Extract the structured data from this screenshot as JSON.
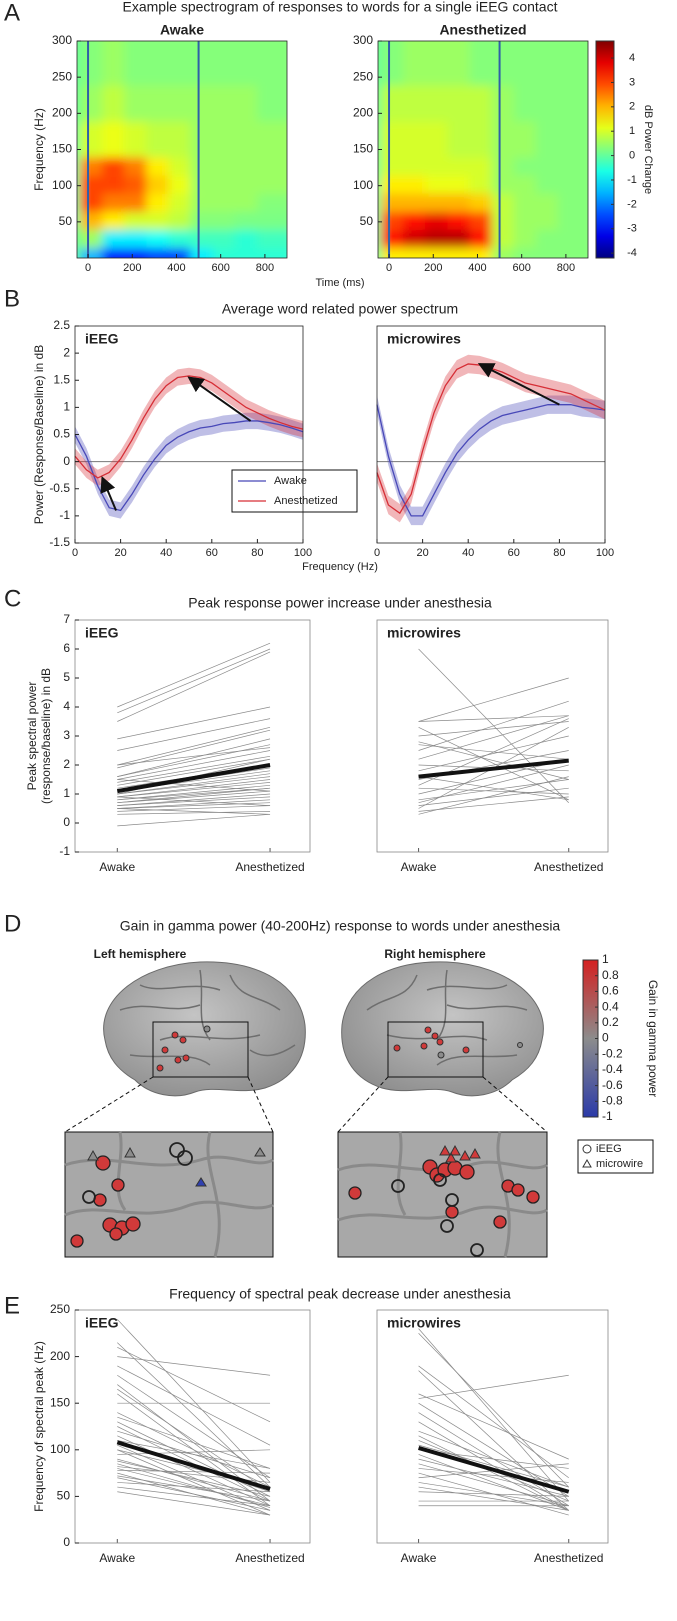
{
  "chart_data": [
    {
      "type": "heatmap",
      "panel_label": "A",
      "suptitle": "Example spectrogram of responses to words for a single iEEG contact",
      "title": "Awake",
      "ylabel": "Frequency (Hz)",
      "xlabel": "Time (ms)",
      "xlim": [
        -50,
        900
      ],
      "ylim": [
        0,
        300
      ],
      "xticks": [
        0,
        200,
        400,
        600,
        800
      ],
      "yticks": [
        50,
        100,
        150,
        200,
        250,
        300
      ],
      "x_edges": [
        -50,
        0,
        100,
        200,
        300,
        400,
        500,
        600,
        700,
        800,
        900
      ],
      "y_edges": [
        0,
        25,
        50,
        75,
        100,
        125,
        150,
        200,
        250,
        300
      ],
      "zlim": [
        -4.2,
        4.7
      ],
      "vlines": [
        0,
        500
      ],
      "vline_color": "#2f5fa8",
      "z": [
        [
          0,
          -1.5,
          -3,
          -3,
          -2.5,
          -2.5,
          -1,
          -0.5,
          -0.5,
          -0.5
        ],
        [
          0,
          0.5,
          -1,
          -1,
          -0.8,
          -0.5,
          -0.3,
          -0.3,
          -0.5,
          -0.3
        ],
        [
          0,
          2,
          1.5,
          1,
          1,
          0.8,
          0.3,
          0.3,
          0.2,
          0.2
        ],
        [
          0,
          3,
          2.5,
          2.5,
          1.5,
          1,
          0.5,
          0.5,
          0.5,
          0.3
        ],
        [
          0,
          3,
          3,
          2.8,
          1.8,
          1.2,
          0.5,
          0.5,
          0.5,
          0.5
        ],
        [
          0,
          2.5,
          3,
          2.5,
          1.5,
          1,
          0.5,
          0.5,
          0.5,
          0.5
        ],
        [
          0,
          1,
          1.2,
          1,
          0.8,
          0.8,
          0.5,
          0.5,
          0.5,
          0.5
        ],
        [
          0,
          0.5,
          0.8,
          0.5,
          0.5,
          0.5,
          0.5,
          0.5,
          0.5,
          0.3
        ],
        [
          0,
          0.3,
          0.5,
          0.3,
          0.3,
          0.3,
          0.3,
          0.3,
          0.3,
          0.3
        ]
      ]
    },
    {
      "type": "heatmap",
      "title": "Anesthetized",
      "xlim": [
        -50,
        900
      ],
      "ylim": [
        0,
        300
      ],
      "xticks": [
        0,
        200,
        400,
        600,
        800
      ],
      "yticks": [
        50,
        100,
        150,
        200,
        250,
        300
      ],
      "x_edges": [
        -50,
        0,
        100,
        200,
        300,
        400,
        500,
        600,
        700,
        800,
        900
      ],
      "y_edges": [
        0,
        25,
        50,
        75,
        100,
        125,
        150,
        200,
        250,
        300
      ],
      "zlim": [
        -4.2,
        4.7
      ],
      "vlines": [
        0,
        500
      ],
      "vline_color": "#2f5fa8",
      "clabel": "dB Power Change",
      "cticks": [
        -4,
        -3,
        -2,
        -1,
        0,
        1,
        2,
        3,
        4
      ],
      "z": [
        [
          0,
          1.5,
          1.5,
          1.5,
          1.5,
          1.5,
          0.5,
          0.3,
          0.3,
          0.3
        ],
        [
          0,
          3.5,
          4,
          4.2,
          4.2,
          3.5,
          0.8,
          0.5,
          0.3,
          0.3
        ],
        [
          0,
          3,
          3.5,
          3.8,
          3.5,
          3,
          0.8,
          0.5,
          0.5,
          0.3
        ],
        [
          0,
          2,
          2,
          2,
          2,
          1.8,
          0.8,
          0.5,
          0.5,
          0.3
        ],
        [
          0,
          1.5,
          1.5,
          1.2,
          1.2,
          1,
          0.5,
          0.5,
          0.3,
          0.3
        ],
        [
          0,
          1,
          1,
          1,
          1,
          1,
          0.5,
          0.3,
          0.3,
          0.3
        ],
        [
          0,
          1,
          1,
          1,
          0.8,
          0.8,
          0.5,
          0.5,
          0.3,
          0.3
        ],
        [
          0,
          0.8,
          0.8,
          0.8,
          0.8,
          0.8,
          0.5,
          0.3,
          0.3,
          0.3
        ],
        [
          0,
          0.3,
          0.5,
          0.5,
          0.5,
          0.3,
          0.3,
          0.3,
          0.3,
          0.3
        ]
      ]
    },
    {
      "type": "line",
      "panel_label": "B",
      "suptitle": "Average word related power spectrum",
      "title": "iEEG",
      "ylabel": "Power (Response/Baseline) in dB",
      "xlabel": "Frequency (Hz)",
      "xlim": [
        0,
        100
      ],
      "ylim": [
        -1.5,
        2.5
      ],
      "xticks": [
        0,
        20,
        40,
        60,
        80,
        100
      ],
      "yticks": [
        -1.5,
        -1,
        -0.5,
        0,
        0.5,
        1,
        1.5,
        2,
        2.5
      ],
      "hline": 0,
      "legend": true,
      "x": [
        0,
        5,
        10,
        15,
        20,
        25,
        30,
        35,
        40,
        45,
        50,
        55,
        60,
        65,
        70,
        75,
        80,
        85,
        90,
        95,
        100
      ],
      "series": [
        {
          "name": "Awake",
          "color": "#4848b8",
          "band": 0.15,
          "values": [
            0.5,
            0.1,
            -0.45,
            -0.85,
            -0.9,
            -0.6,
            -0.25,
            0.05,
            0.3,
            0.45,
            0.55,
            0.62,
            0.65,
            0.7,
            0.72,
            0.75,
            0.75,
            0.72,
            0.68,
            0.62,
            0.55
          ]
        },
        {
          "name": "Anesthetized",
          "color": "#d62e36",
          "band": 0.15,
          "values": [
            0.1,
            -0.15,
            -0.3,
            -0.2,
            0.05,
            0.4,
            0.8,
            1.15,
            1.4,
            1.55,
            1.58,
            1.55,
            1.45,
            1.3,
            1.15,
            1.0,
            0.9,
            0.8,
            0.72,
            0.65,
            0.6
          ]
        }
      ],
      "arrows": [
        [
          77,
          0.75,
          50,
          1.55
        ],
        [
          18,
          -0.9,
          12,
          -0.3
        ]
      ]
    },
    {
      "type": "line",
      "title": "microwires",
      "xlim": [
        0,
        100
      ],
      "ylim": [
        -1.5,
        2.5
      ],
      "xticks": [
        0,
        20,
        40,
        60,
        80,
        100
      ],
      "hline": 0,
      "x": [
        0,
        5,
        10,
        15,
        20,
        25,
        30,
        35,
        40,
        45,
        50,
        55,
        60,
        65,
        70,
        75,
        80,
        85,
        90,
        95,
        100
      ],
      "series": [
        {
          "color": "#4848b8",
          "band": 0.17,
          "values": [
            1.05,
            0.1,
            -0.6,
            -1.0,
            -1.0,
            -0.6,
            -0.2,
            0.15,
            0.4,
            0.6,
            0.75,
            0.85,
            0.9,
            0.95,
            1.0,
            1.05,
            1.05,
            1.05,
            1.0,
            0.98,
            0.95
          ]
        },
        {
          "color": "#d62e36",
          "band": 0.17,
          "values": [
            -0.2,
            -0.8,
            -0.95,
            -0.6,
            0.2,
            0.9,
            1.4,
            1.7,
            1.8,
            1.78,
            1.72,
            1.65,
            1.55,
            1.45,
            1.4,
            1.35,
            1.3,
            1.25,
            1.15,
            1.05,
            0.95
          ]
        }
      ],
      "arrows": [
        [
          80,
          1.05,
          45,
          1.8
        ]
      ]
    },
    {
      "type": "paired",
      "panel_label": "C",
      "suptitle": "Peak response power increase under anesthesia",
      "title": "iEEG",
      "ylabel": [
        "Peak spectral power",
        "(response/baseline) in dB"
      ],
      "categories": [
        "Awake",
        "Anesthetized"
      ],
      "ylim": [
        -1,
        7
      ],
      "yticks": [
        -1,
        0,
        1,
        2,
        3,
        4,
        5,
        6,
        7
      ],
      "subject_color": "#8a8a8a",
      "mean_color": "#111111",
      "mean": [
        1.1,
        2.0
      ],
      "subjects": [
        [
          4.0,
          6.2
        ],
        [
          3.8,
          6.0
        ],
        [
          3.5,
          5.9
        ],
        [
          2.9,
          4.0
        ],
        [
          2.5,
          3.6
        ],
        [
          2.0,
          3.3
        ],
        [
          1.9,
          3.2
        ],
        [
          1.6,
          2.9
        ],
        [
          1.6,
          2.7
        ],
        [
          1.5,
          2.5
        ],
        [
          1.4,
          2.3
        ],
        [
          1.3,
          2.2
        ],
        [
          1.2,
          2.0
        ],
        [
          1.1,
          1.9
        ],
        [
          1.1,
          1.8
        ],
        [
          1.0,
          1.7
        ],
        [
          1.0,
          1.6
        ],
        [
          0.9,
          1.5
        ],
        [
          0.9,
          1.4
        ],
        [
          0.8,
          1.3
        ],
        [
          0.8,
          1.2
        ],
        [
          0.7,
          1.2
        ],
        [
          0.7,
          1.1
        ],
        [
          0.6,
          1.0
        ],
        [
          0.6,
          0.9
        ],
        [
          0.5,
          0.8
        ],
        [
          0.5,
          0.7
        ],
        [
          0.4,
          0.6
        ],
        [
          0.3,
          0.4
        ],
        [
          -0.1,
          0.3
        ],
        [
          1.5,
          1.1
        ],
        [
          2.0,
          2.6
        ],
        [
          1.0,
          2.2
        ],
        [
          0.9,
          0.6
        ],
        [
          0.5,
          0.3
        ]
      ]
    },
    {
      "type": "paired",
      "title": "microwires",
      "categories": [
        "Awake",
        "Anesthetized"
      ],
      "ylim": [
        -1,
        7
      ],
      "subject_color": "#8a8a8a",
      "mean_color": "#111111",
      "mean": [
        1.6,
        2.15
      ],
      "subjects": [
        [
          6.0,
          0.7
        ],
        [
          3.5,
          5.0
        ],
        [
          3.5,
          3.7
        ],
        [
          3.3,
          0.8
        ],
        [
          3.0,
          3.5
        ],
        [
          2.7,
          2.2
        ],
        [
          2.5,
          4.2
        ],
        [
          2.2,
          3.7
        ],
        [
          2.0,
          1.8
        ],
        [
          1.8,
          3.0
        ],
        [
          1.5,
          2.5
        ],
        [
          1.3,
          3.6
        ],
        [
          1.2,
          1.0
        ],
        [
          1.0,
          2.2
        ],
        [
          0.8,
          1.5
        ],
        [
          0.7,
          2.0
        ],
        [
          0.6,
          1.2
        ],
        [
          0.5,
          3.3
        ],
        [
          0.4,
          0.9
        ],
        [
          0.3,
          1.6
        ],
        [
          1.6,
          0.8
        ],
        [
          2.8,
          1.5
        ]
      ]
    },
    {
      "type": "brain",
      "panel_label": "D",
      "suptitle": "Gain in gamma power (40-200Hz) response to words under anesthesia",
      "titles": [
        "Left hemisphere",
        "Right hemisphere"
      ],
      "clabel": "Gain in gamma power",
      "clim": [
        -1,
        1
      ],
      "cticks": [
        -1,
        -0.8,
        -0.6,
        -0.4,
        -0.2,
        0,
        0.2,
        0.4,
        0.6,
        0.8,
        1
      ],
      "colormap": [
        "#2b3aa8",
        "#8c8c8c",
        "#d42020"
      ],
      "legend": [
        "iEEG",
        "microwire"
      ]
    },
    {
      "type": "paired",
      "panel_label": "E",
      "suptitle": "Frequency of spectral peak decrease under anesthesia",
      "title": "iEEG",
      "ylabel": [
        "Frequency of spectral peak (Hz)"
      ],
      "categories": [
        "Awake",
        "Anesthetized"
      ],
      "ylim": [
        0,
        250
      ],
      "yticks": [
        0,
        50,
        100,
        150,
        200,
        250
      ],
      "subject_color": "#8a8a8a",
      "mean_color": "#111111",
      "mean": [
        108,
        58
      ],
      "subjects": [
        [
          240,
          65
        ],
        [
          215,
          60
        ],
        [
          210,
          130
        ],
        [
          200,
          180
        ],
        [
          190,
          105
        ],
        [
          180,
          70
        ],
        [
          170,
          45
        ],
        [
          165,
          55
        ],
        [
          160,
          40
        ],
        [
          150,
          150
        ],
        [
          140,
          60
        ],
        [
          135,
          80
        ],
        [
          130,
          50
        ],
        [
          125,
          45
        ],
        [
          120,
          70
        ],
        [
          115,
          40
        ],
        [
          110,
          55
        ],
        [
          105,
          35
        ],
        [
          100,
          60
        ],
        [
          95,
          100
        ],
        [
          90,
          45
        ],
        [
          88,
          50
        ],
        [
          85,
          38
        ],
        [
          82,
          65
        ],
        [
          80,
          40
        ],
        [
          78,
          75
        ],
        [
          75,
          30
        ],
        [
          72,
          45
        ],
        [
          70,
          35
        ],
        [
          65,
          55
        ],
        [
          60,
          40
        ],
        [
          55,
          30
        ],
        [
          110,
          80
        ],
        [
          100,
          30
        ]
      ]
    },
    {
      "type": "paired",
      "title": "microwires",
      "categories": [
        "Awake",
        "Anesthetized"
      ],
      "ylim": [
        0,
        250
      ],
      "subject_color": "#8a8a8a",
      "mean_color": "#111111",
      "mean": [
        102,
        55
      ],
      "subjects": [
        [
          230,
          45
        ],
        [
          225,
          60
        ],
        [
          190,
          70
        ],
        [
          185,
          35
        ],
        [
          160,
          90
        ],
        [
          155,
          180
        ],
        [
          150,
          50
        ],
        [
          140,
          40
        ],
        [
          130,
          35
        ],
        [
          120,
          60
        ],
        [
          110,
          45
        ],
        [
          100,
          80
        ],
        [
          95,
          35
        ],
        [
          90,
          50
        ],
        [
          85,
          40
        ],
        [
          80,
          65
        ],
        [
          75,
          30
        ],
        [
          70,
          85
        ],
        [
          65,
          40
        ],
        [
          60,
          35
        ],
        [
          55,
          50
        ],
        [
          45,
          45
        ],
        [
          40,
          40
        ],
        [
          115,
          35
        ],
        [
          105,
          60
        ]
      ]
    }
  ]
}
